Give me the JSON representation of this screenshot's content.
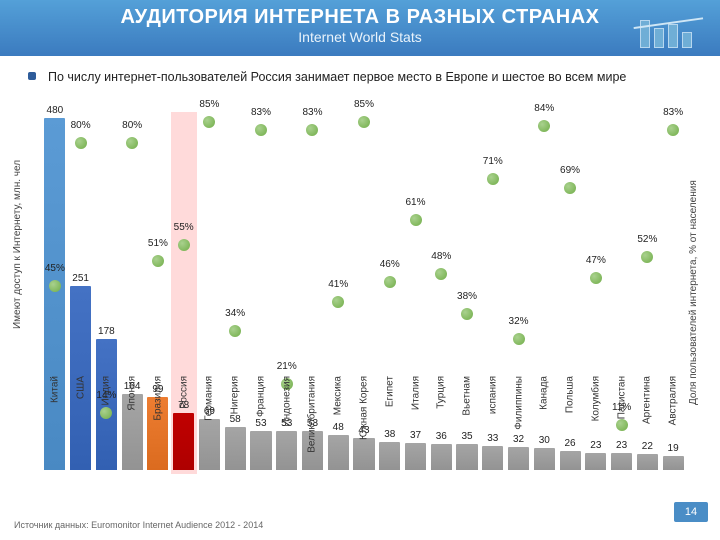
{
  "header": {
    "title": "АУДИТОРИЯ ИНТЕРНЕТА В РАЗНЫХ СТРАНАХ",
    "subtitle": "Internet World Stats",
    "bg_gradient": [
      "#54a0d8",
      "#3b7bbf"
    ]
  },
  "lead": {
    "text": "По числу интернет-пользователей Россия занимает первое место в Европе и шестое во всем мире"
  },
  "chart": {
    "type": "bar+scatter",
    "y1_label": "Имеют доступ к Интернету, млн. чел",
    "y2_label": "Доля пользователей интернета, % от населения",
    "y1_max": 480,
    "pct_max": 86,
    "highlight_index": 5,
    "highlight_color": "#ffdada",
    "marker_color": "#70ad47",
    "categories": [
      {
        "label": "Китай",
        "users": 480,
        "pct": 45,
        "bar": "#5b9bd5"
      },
      {
        "label": "США",
        "users": 251,
        "pct": 80,
        "bar": "#4472c4"
      },
      {
        "label": "Индия",
        "users": 178,
        "pct": 14,
        "bar": "#4472c4"
      },
      {
        "label": "Япония",
        "users": 104,
        "pct": 80,
        "bar": "#a5a5a5"
      },
      {
        "label": "Бразилия",
        "users": 99,
        "pct": 51,
        "bar": "#ed7d31"
      },
      {
        "label": "Россия",
        "users": 78,
        "pct": 55,
        "bar": "#c00000"
      },
      {
        "label": "Германия",
        "users": 69,
        "pct": 85,
        "bar": "#a5a5a5"
      },
      {
        "label": "Нигерия",
        "users": 58,
        "pct": 34,
        "bar": "#a5a5a5"
      },
      {
        "label": "Франция",
        "users": 53,
        "pct": 83,
        "bar": "#a5a5a5"
      },
      {
        "label": "Индонезия",
        "users": 53,
        "pct": 21,
        "bar": "#a5a5a5"
      },
      {
        "label": "Великобритания",
        "users": 53,
        "pct": 83,
        "bar": "#a5a5a5"
      },
      {
        "label": "Мексика",
        "users": 48,
        "pct": 41,
        "bar": "#a5a5a5"
      },
      {
        "label": "Южная Корея",
        "users": 43,
        "pct": 85,
        "bar": "#a5a5a5"
      },
      {
        "label": "Египет",
        "users": 38,
        "pct": 46,
        "bar": "#a5a5a5"
      },
      {
        "label": "Италия",
        "users": 37,
        "pct": 61,
        "bar": "#a5a5a5"
      },
      {
        "label": "Турция",
        "users": 36,
        "pct": 48,
        "bar": "#a5a5a5"
      },
      {
        "label": "Вьетнам",
        "users": 35,
        "pct": 38,
        "bar": "#a5a5a5"
      },
      {
        "label": "испания",
        "users": 33,
        "pct": 71,
        "bar": "#a5a5a5"
      },
      {
        "label": "Филиппины",
        "users": 32,
        "pct": 32,
        "bar": "#a5a5a5"
      },
      {
        "label": "Канада",
        "users": 30,
        "pct": 84,
        "bar": "#a5a5a5"
      },
      {
        "label": "Польша",
        "users": 26,
        "pct": 69,
        "bar": "#a5a5a5"
      },
      {
        "label": "Колумбия",
        "users": 23,
        "pct": 47,
        "bar": "#a5a5a5"
      },
      {
        "label": "Пакистан",
        "users": 23,
        "pct": 11,
        "bar": "#a5a5a5"
      },
      {
        "label": "Аргентина",
        "users": 22,
        "pct": 52,
        "bar": "#a5a5a5"
      },
      {
        "label": "Австралия",
        "users": 19,
        "pct": 83,
        "bar": "#a5a5a5"
      }
    ]
  },
  "footer": {
    "source": "Источник данных: Euromonitor Internet Audience 2012 - 2014",
    "page": "14"
  }
}
